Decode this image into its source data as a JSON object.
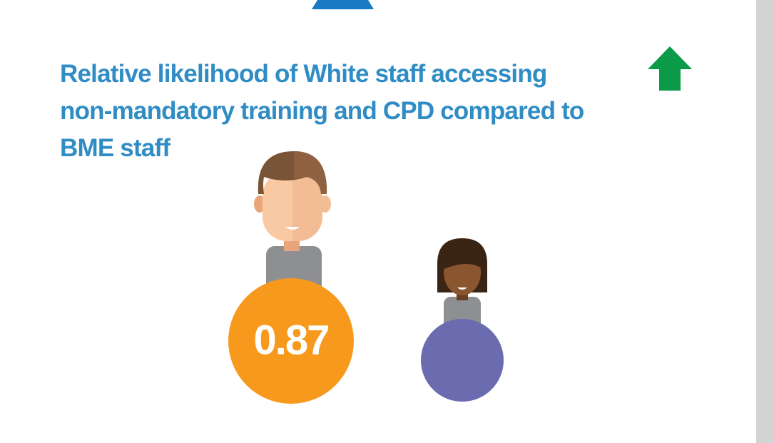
{
  "title": {
    "lines": [
      "Relative likelihood of White staff accessing",
      "non-mandatory training and CPD compared to",
      "BME staff"
    ]
  },
  "metric": {
    "value": "0.87"
  }
}
